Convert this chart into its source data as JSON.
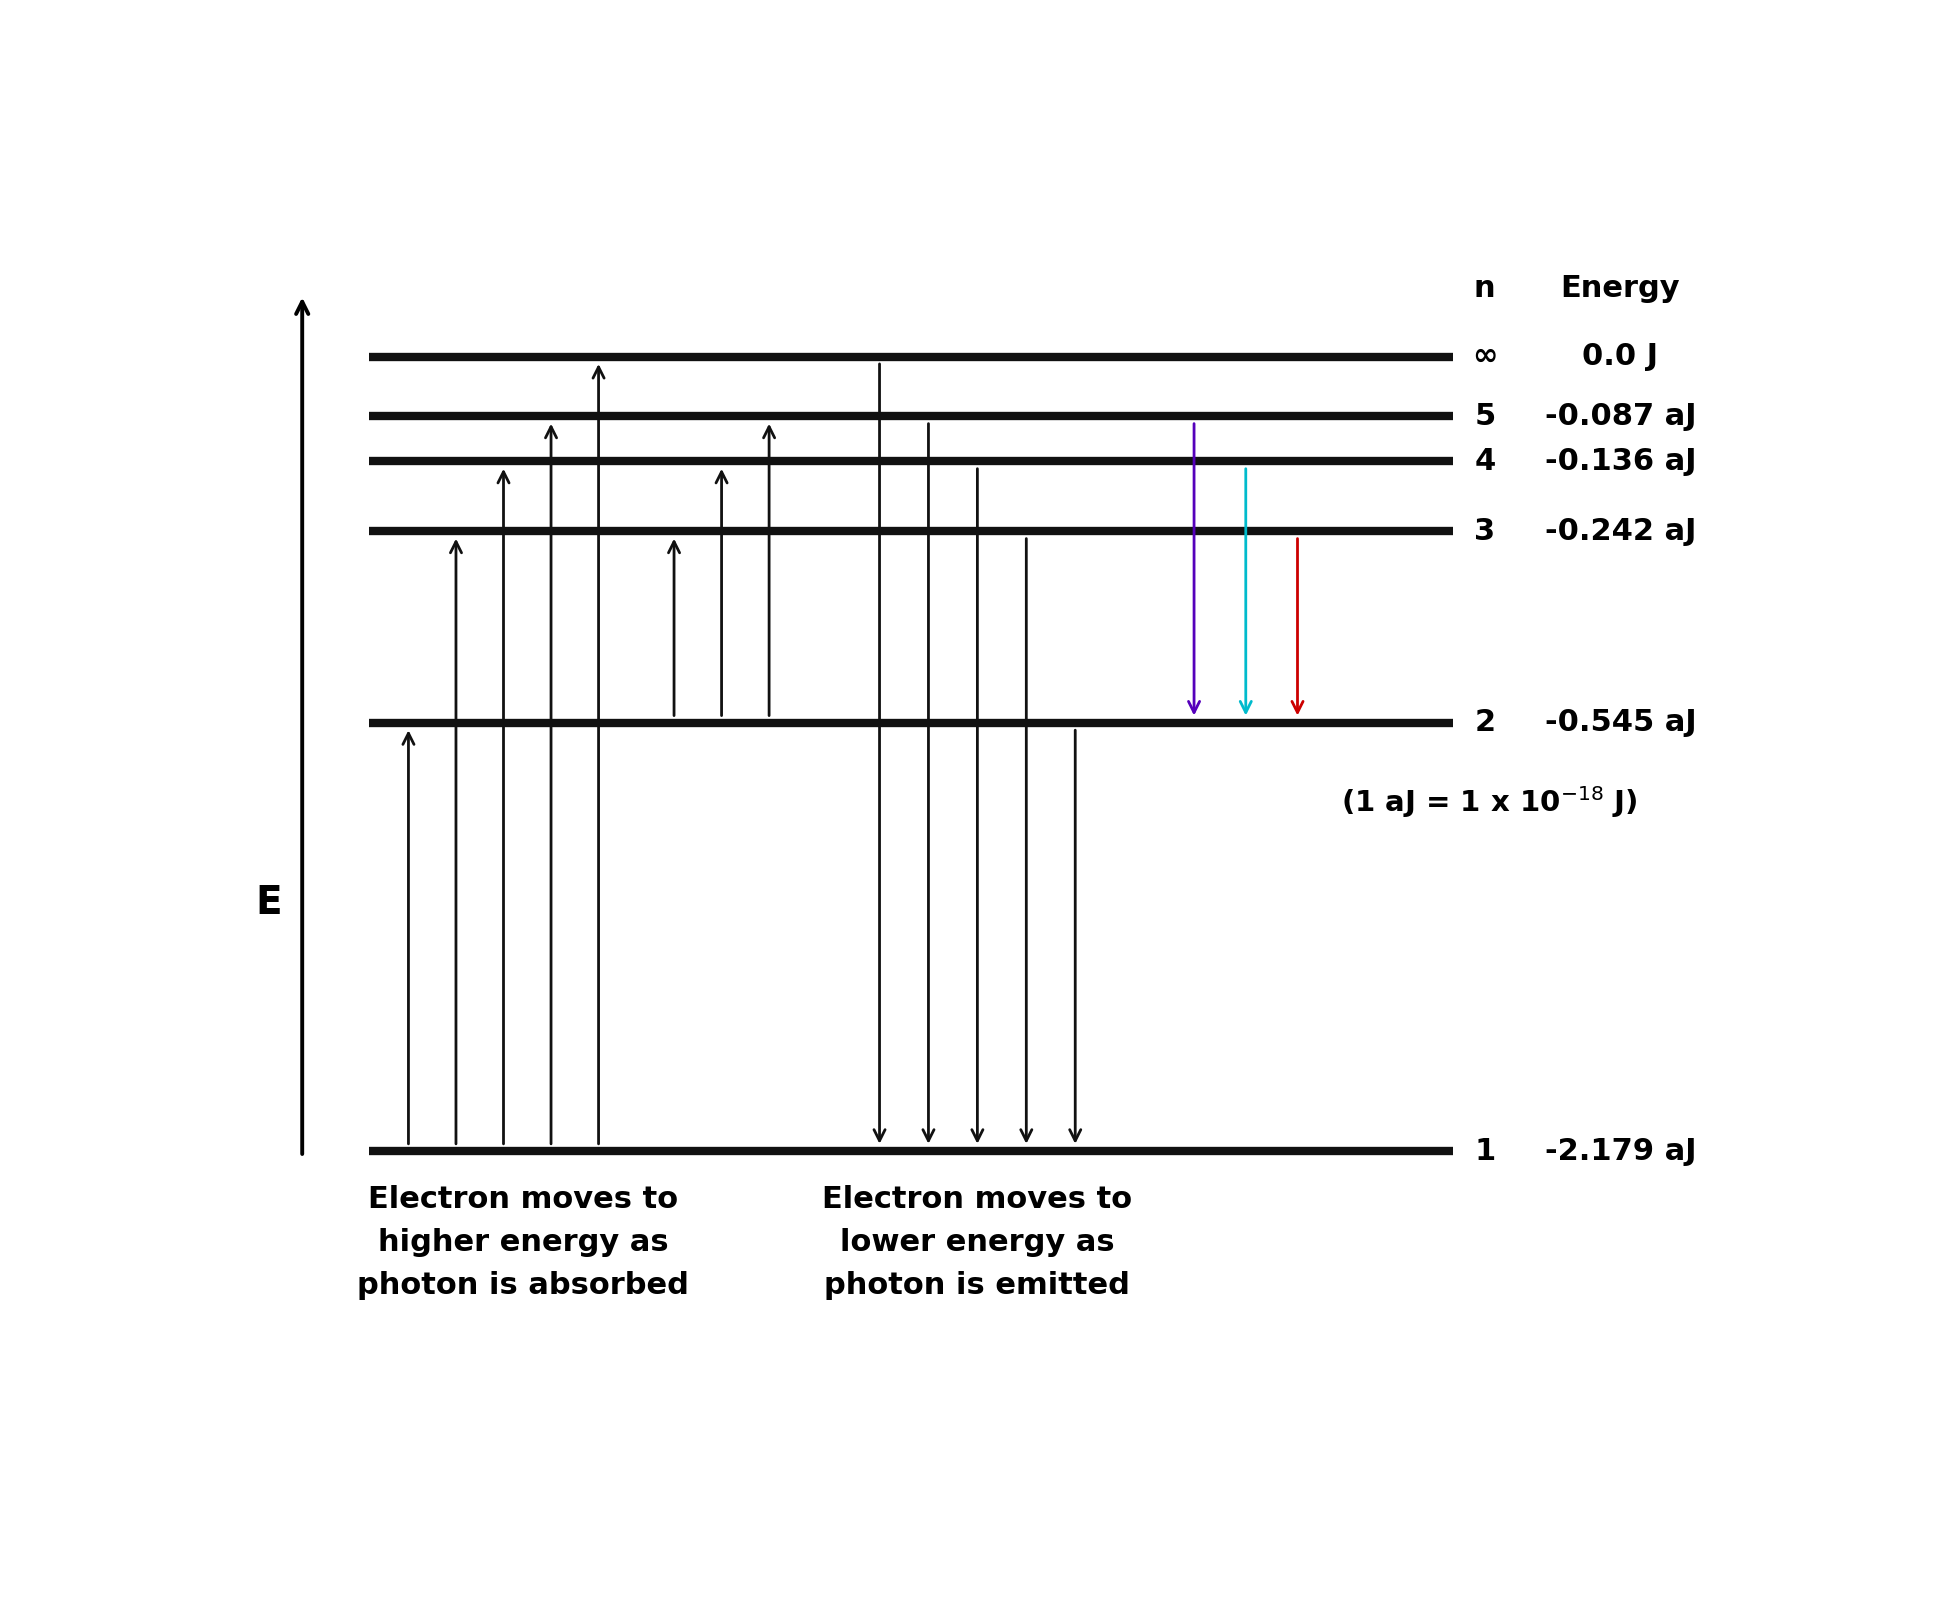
{
  "background_color": "#ffffff",
  "energy_levels": {
    "1": -2.179,
    "2": -0.545,
    "3": -0.242,
    "4": -0.136,
    "5": -0.087,
    "inf": 0.0
  },
  "level_n_labels": {
    "1": "1",
    "2": "2",
    "3": "3",
    "4": "4",
    "5": "5",
    "inf": "∞"
  },
  "level_e_labels": {
    "1": "-2.179 aJ",
    "2": "-0.545 aJ",
    "3": "-0.242 aJ",
    "4": "-0.136 aJ",
    "5": "-0.087 aJ",
    "inf": "0.0 J"
  },
  "line_color": "#111111",
  "line_lw": 6,
  "arrow_color": "#111111",
  "arrow_lw": 2.0,
  "colored_arrows": {
    "5_to_2": "#5500bb",
    "4_to_2": "#00bbcc",
    "3_to_2": "#cc0000"
  },
  "label_absorbed": "Electron moves to\nhigher energy as\nphoton is absorbed",
  "label_emitted": "Electron moves to\nlower energy as\nphoton is emitted",
  "col_header_n": "n",
  "col_header_energy": "Energy",
  "e_label": "E",
  "note_main": "(1 aJ = 1 x 10",
  "note_sup": "-18",
  "note_end": " J)"
}
